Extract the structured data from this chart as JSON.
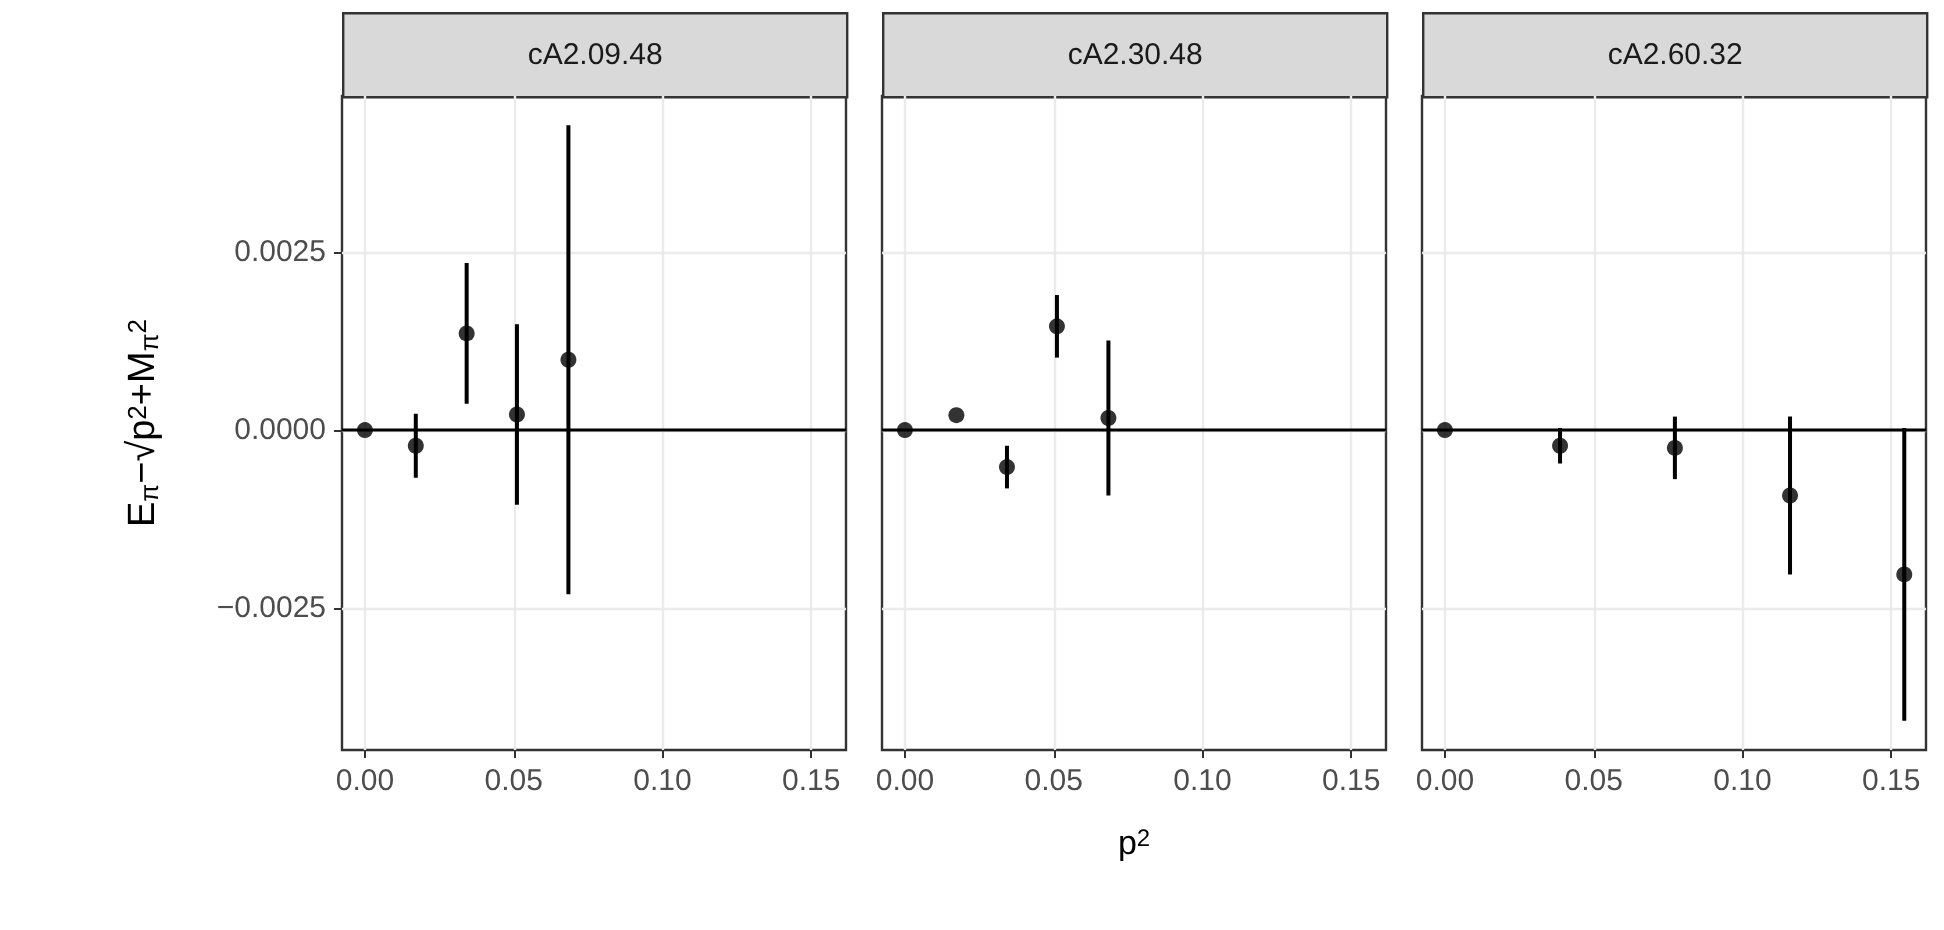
{
  "chart_data": [
    {
      "type": "scatter",
      "title": "cA2.09.48",
      "ylabel": "E$_{π}$−√p$^{2}$+M$_{π}$$^{2}$",
      "x": [
        0,
        0.0171,
        0.0342,
        0.0511,
        0.0684
      ],
      "values": [
        0,
        -0.00022,
        0.00136,
        0.00022,
        0.00099
      ],
      "errors": [
        null,
        0.00045,
        0.00099,
        0.00127,
        0.0033
      ],
      "color": "#000000",
      "marker": "circle",
      "xlim": [
        -0.0077,
        0.1617
      ],
      "xticks": [
        {
          "value": 0,
          "label": "0.00"
        },
        {
          "value": 0.05,
          "label": "0.05"
        },
        {
          "value": 0.1,
          "label": "0.10"
        },
        {
          "value": 0.15,
          "label": "0.15"
        }
      ],
      "ylim": [
        -0.0045,
        0.0047
      ],
      "yticks": [
        {
          "value": -0.0025,
          "label": "−0.0025"
        },
        {
          "value": 0,
          "label": "0.0000"
        },
        {
          "value": 0.0025,
          "label": "0.0025"
        }
      ],
      "grid": true,
      "ref_lines": [
        {
          "axis": "y",
          "value": 0,
          "color": "#000000"
        }
      ]
    },
    {
      "type": "scatter",
      "title": "cA2.30.48",
      "xlabel": "p$^{2}$",
      "x": [
        0,
        0.0173,
        0.0343,
        0.0511,
        0.0684
      ],
      "values": [
        0,
        0.00021,
        -0.00052,
        0.00146,
        0.00017
      ],
      "errors": [
        null,
        null,
        0.0003,
        0.00044,
        0.00109
      ],
      "color": "#000000",
      "marker": "circle",
      "xlim": [
        -0.0077,
        0.1617
      ],
      "xticks": [
        {
          "value": 0,
          "label": "0.00"
        },
        {
          "value": 0.05,
          "label": "0.05"
        },
        {
          "value": 0.1,
          "label": "0.10"
        },
        {
          "value": 0.15,
          "label": "0.15"
        }
      ],
      "ylim": [
        -0.0045,
        0.0047
      ],
      "yticks": [
        -0.0025,
        0,
        0.0025
      ],
      "tick_labels": "x",
      "grid": true,
      "ref_lines": [
        {
          "axis": "y",
          "value": 0,
          "color": "#000000"
        }
      ]
    },
    {
      "type": "scatter",
      "title": "cA2.60.32",
      "x": [
        0,
        0.0387,
        0.0773,
        0.116,
        0.1544
      ],
      "values": [
        0,
        -0.00022,
        -0.00025,
        -0.00092,
        -0.00203
      ],
      "errors": [
        null,
        0.00025,
        0.00044,
        0.00111,
        0.00206
      ],
      "color": "#000000",
      "marker": "circle",
      "xlim": [
        -0.0077,
        0.1617
      ],
      "xticks": [
        {
          "value": 0,
          "label": "0.00"
        },
        {
          "value": 0.05,
          "label": "0.05"
        },
        {
          "value": 0.1,
          "label": "0.10"
        },
        {
          "value": 0.15,
          "label": "0.15"
        }
      ],
      "ylim": [
        -0.0045,
        0.0047
      ],
      "yticks": [
        -0.0025,
        0,
        0.0025
      ],
      "tick_labels": "x",
      "grid": true,
      "ref_lines": [
        {
          "axis": "y",
          "value": 0,
          "color": "#000000"
        }
      ]
    }
  ]
}
